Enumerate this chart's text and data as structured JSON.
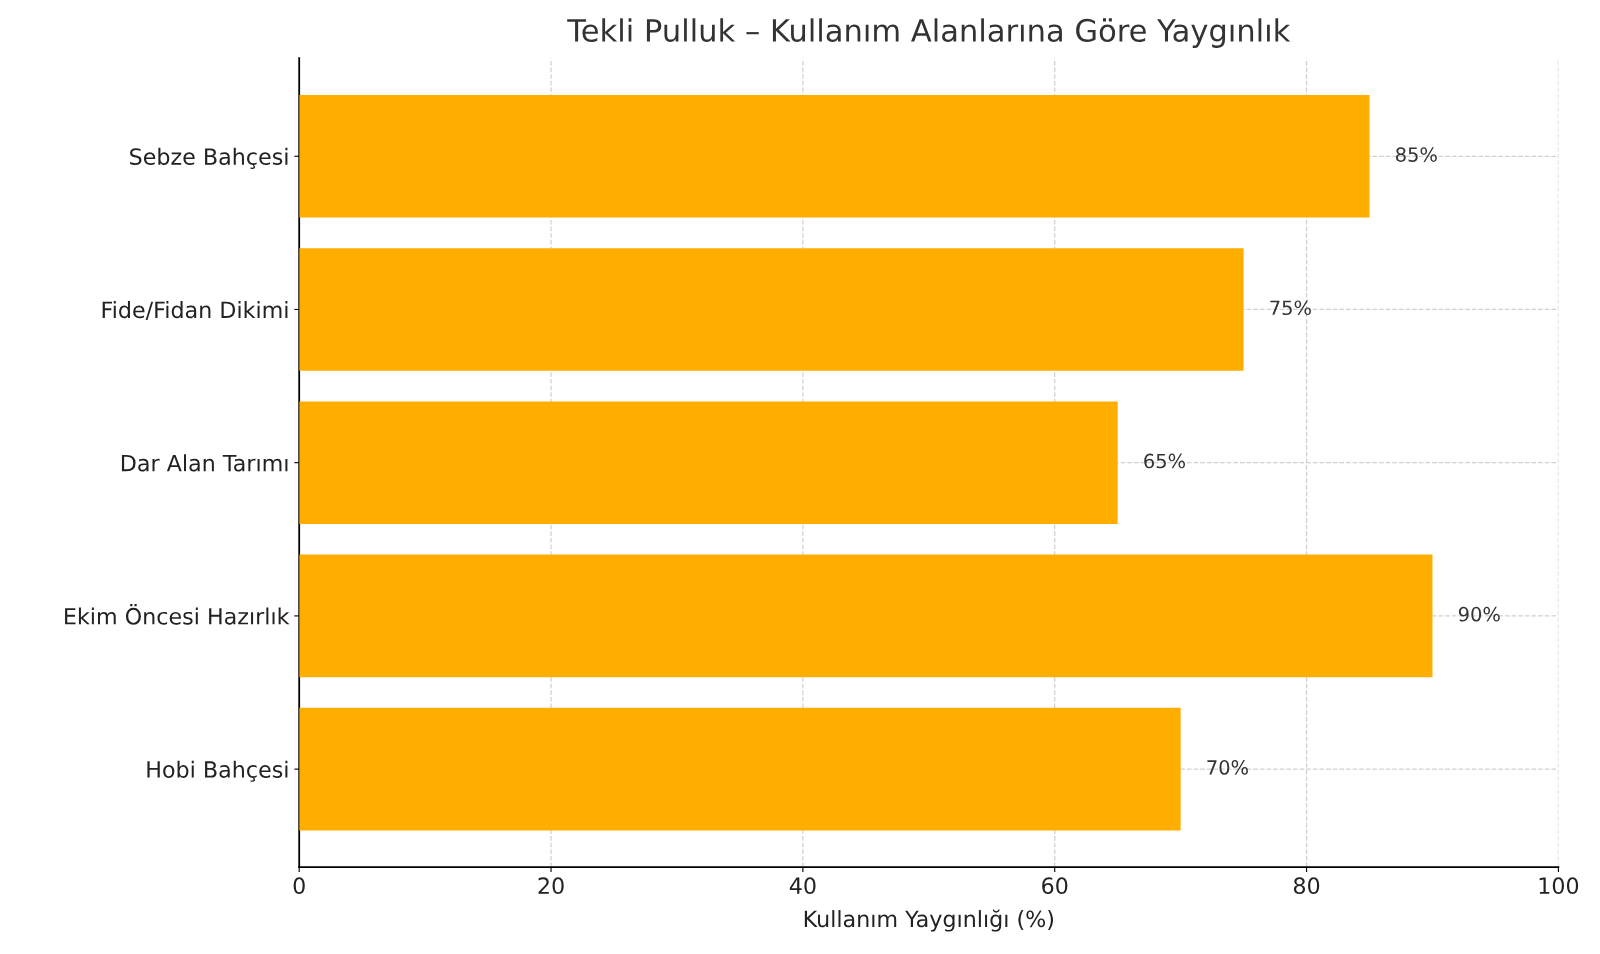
{
  "chart_data": {
    "type": "bar",
    "orientation": "horizontal",
    "title": "Tekli Pulluk – Kullanım Alanlarına Göre Yaygınlık",
    "xlabel": "Kullanım Yaygınlığı (%)",
    "categories": [
      "Sebze Bahçesi",
      "Fide/Fidan Dikimi",
      "Dar Alan Tarımı",
      "Ekim Öncesi Hazırlık",
      "Hobi Bahçesi"
    ],
    "values": [
      85,
      75,
      65,
      90,
      70
    ],
    "color": "#ffae00",
    "value_labels": [
      "85%",
      "75%",
      "65%",
      "90%",
      "70%"
    ],
    "xlim": [
      0,
      100
    ],
    "xticks": [
      0,
      20,
      40,
      60,
      80,
      100
    ],
    "grid": true,
    "line_style": "dashed"
  }
}
